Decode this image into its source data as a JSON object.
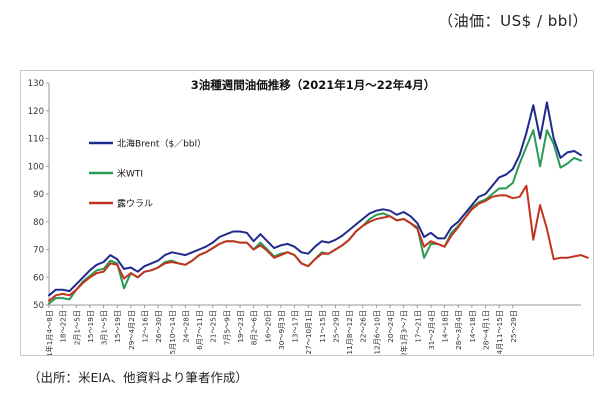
{
  "unit_note": "（油価：US$ / bbl）",
  "source_note": "（出所：米EIA、他資料より筆者作成）",
  "chart_data": {
    "type": "line",
    "title": "3油種週間油価推移（2021年1月～22年4月）",
    "ylim": [
      50,
      130
    ],
    "yticks": [
      50,
      60,
      70,
      80,
      90,
      100,
      110,
      120,
      130
    ],
    "grid": false,
    "legend_position": "left-middle",
    "x_tick_labels": [
      "21年1月4～8日",
      "18～22日",
      "2月1～5日",
      "15～19日",
      "3月1～5日",
      "15～19日",
      "29～4月2日",
      "12～16日",
      "26～30日",
      "5月10～14日",
      "24～28日",
      "6月7～11日",
      "21～25日",
      "7月5～9日",
      "19～23日",
      "8月2～6日",
      "16～20日",
      "30～9月3日",
      "13～17日",
      "27～10月1日",
      "11～15日",
      "25～29日",
      "11月8～12日",
      "22～26日",
      "12月6～10日",
      "20～24日",
      "22年1月3～7日",
      "17～21日",
      "31～2月4日",
      "14～18日",
      "28～3月4日",
      "14～18日",
      "28～4月1日",
      "4月11～15日",
      "25～29日"
    ],
    "series": [
      {
        "name": "北海Brent（$／bbl）",
        "color": "#1f2a8c",
        "values": [
          53.5,
          55.5,
          55.5,
          55,
          57.5,
          60,
          62.5,
          64.5,
          65.5,
          68,
          66.5,
          63,
          63.5,
          62,
          64,
          65,
          66,
          68,
          69,
          68.5,
          68,
          69,
          70,
          71,
          72.5,
          74.5,
          75.5,
          76.5,
          76.5,
          76,
          73,
          75.5,
          73,
          70.5,
          71.5,
          72,
          71,
          69,
          68.5,
          71,
          73,
          72.5,
          73.5,
          75,
          77,
          79,
          81,
          83,
          84,
          84.5,
          84,
          82.5,
          83.5,
          82,
          79.5,
          74.5,
          76,
          74,
          74,
          78,
          80,
          83,
          86,
          89,
          90,
          93,
          96,
          97,
          99,
          104,
          112,
          122,
          110,
          123,
          110,
          103,
          105,
          105.5,
          104
        ]
      },
      {
        "name": "米WTI",
        "color": "#2a9a55",
        "values": [
          50.5,
          52.5,
          52.5,
          52,
          55.5,
          58.5,
          60.5,
          62.5,
          63,
          66,
          65,
          56,
          61.5,
          60,
          62,
          62.5,
          63.5,
          65.5,
          66,
          65,
          64.5,
          66,
          68,
          69,
          70.5,
          72,
          73,
          73,
          72.5,
          72.5,
          70,
          72.5,
          70,
          67.5,
          68.5,
          69,
          68,
          65,
          64,
          66.5,
          69,
          68.5,
          70,
          71.5,
          73.5,
          76.5,
          78.5,
          81,
          82.5,
          83,
          82,
          80.5,
          81,
          79.5,
          78,
          67,
          72,
          72,
          71,
          76,
          78.5,
          81.5,
          85,
          87,
          88,
          90,
          92,
          92,
          94,
          101,
          107,
          113,
          100,
          113,
          108,
          99.5,
          101,
          103,
          102
        ]
      },
      {
        "name": "露ウラル",
        "color": "#c23320",
        "values": [
          51.5,
          53.5,
          54,
          53.5,
          55.5,
          58,
          60,
          61.5,
          62,
          65,
          64.5,
          59.5,
          61.5,
          60,
          62,
          62.5,
          63.5,
          65,
          65.5,
          65,
          64.5,
          66,
          68,
          69,
          70.5,
          72,
          73,
          73,
          72.5,
          72.5,
          70,
          71.5,
          69.5,
          67,
          68,
          69,
          68,
          65,
          64,
          66.5,
          68.5,
          68.5,
          70,
          71.5,
          73.5,
          76.5,
          78.5,
          80,
          81,
          81.5,
          82,
          80.5,
          81,
          79.5,
          77.5,
          71,
          73,
          72,
          71,
          75,
          78,
          81.5,
          84.5,
          86.5,
          87.5,
          89,
          89.5,
          89.5,
          88.5,
          89,
          93,
          73.5,
          86,
          77.5,
          66.5,
          67,
          67,
          67.5,
          68,
          67
        ]
      }
    ]
  }
}
